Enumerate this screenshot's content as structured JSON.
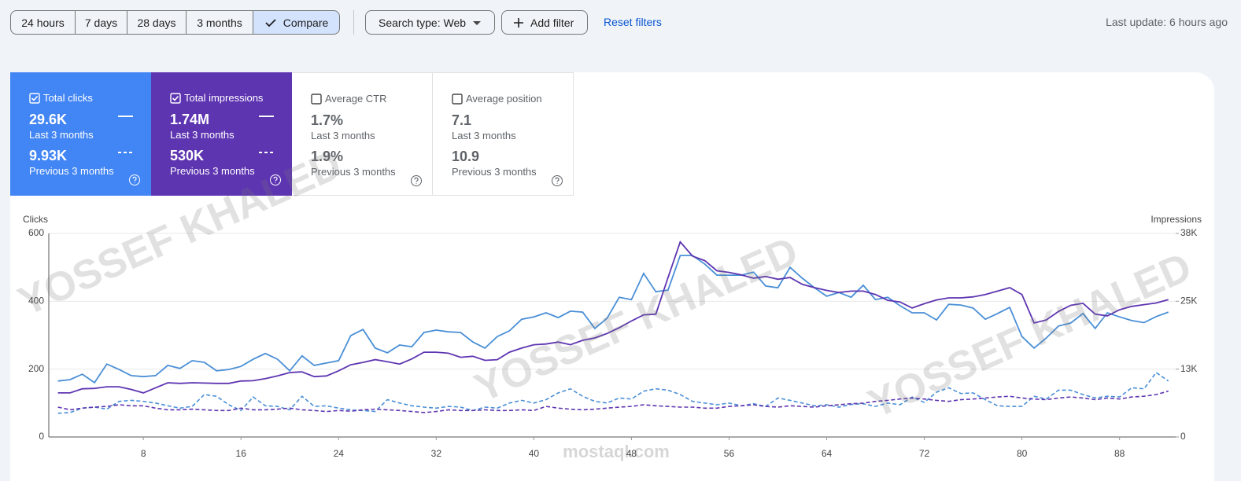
{
  "header": {
    "ranges": [
      "24 hours",
      "7 days",
      "28 days",
      "3 months"
    ],
    "compare": "Compare",
    "search_type": "Search type: Web",
    "add_filter": "Add filter",
    "reset": "Reset filters",
    "last_update": "Last update: 6 hours ago"
  },
  "metrics": [
    {
      "title": "Total clicks",
      "checked": true,
      "current": "29.6K",
      "current_label": "Last 3 months",
      "previous": "9.93K",
      "previous_label": "Previous 3 months",
      "color": "#4285f4"
    },
    {
      "title": "Total impressions",
      "checked": true,
      "current": "1.74M",
      "current_label": "Last 3 months",
      "previous": "530K",
      "previous_label": "Previous 3 months",
      "color": "#5e35b1"
    },
    {
      "title": "Average CTR",
      "checked": false,
      "current": "1.7%",
      "current_label": "Last 3 months",
      "previous": "1.9%",
      "previous_label": "Previous 3 months",
      "color": "#ffffff"
    },
    {
      "title": "Average position",
      "checked": false,
      "current": "7.1",
      "current_label": "Last 3 months",
      "previous": "10.9",
      "previous_label": "Previous 3 months",
      "color": "#ffffff"
    }
  ],
  "watermark": {
    "text": "YOSSEF KHALED",
    "site": "mostaql.com"
  },
  "chart_data": {
    "type": "line",
    "ylabel": "Clicks",
    "y2label": "Impressions",
    "x": [
      1,
      2,
      3,
      4,
      5,
      6,
      7,
      8,
      9,
      10,
      11,
      12,
      13,
      14,
      15,
      16,
      17,
      18,
      19,
      20,
      21,
      22,
      23,
      24,
      25,
      26,
      27,
      28,
      29,
      30,
      31,
      32,
      33,
      34,
      35,
      36,
      37,
      38,
      39,
      40,
      41,
      42,
      43,
      44,
      45,
      46,
      47,
      48,
      49,
      50,
      51,
      52,
      53,
      54,
      55,
      56,
      57,
      58,
      59,
      60,
      61,
      62,
      63,
      64,
      65,
      66,
      67,
      68,
      69,
      70,
      71,
      72,
      73,
      74,
      75,
      76,
      77,
      78,
      79,
      80,
      81,
      82,
      83,
      84,
      85,
      86,
      87,
      88,
      89,
      90,
      91,
      92
    ],
    "xlim": [
      0.25,
      92.6
    ],
    "xticks": [
      8,
      16,
      24,
      32,
      40,
      48,
      56,
      64,
      72,
      80,
      88
    ],
    "ylim": [
      0,
      600
    ],
    "yticks": [
      0,
      200,
      400,
      600
    ],
    "y2lim": [
      0,
      38000
    ],
    "y2ticks": [
      0,
      {
        "value": 12667,
        "label": "13K"
      },
      {
        "value": 25333,
        "label": "25K"
      },
      {
        "value": 38000,
        "label": "38K"
      }
    ],
    "grid": true,
    "series": [
      {
        "color": "#4a8fd6",
        "dashed": false,
        "axis": "y",
        "values": [
          165,
          169,
          185,
          160,
          215,
          199,
          181,
          178,
          181,
          211,
          202,
          225,
          220,
          195,
          199,
          208,
          229,
          246,
          229,
          195,
          239,
          211,
          218,
          225,
          299,
          317,
          262,
          248,
          271,
          266,
          308,
          315,
          310,
          308,
          280,
          262,
          296,
          313,
          347,
          354,
          366,
          352,
          371,
          368,
          320,
          350,
          412,
          405,
          482,
          428,
          433,
          535,
          535,
          510,
          477,
          477,
          477,
          486,
          445,
          440,
          500,
          468,
          440,
          415,
          426,
          412,
          447,
          405,
          412,
          387,
          366,
          366,
          345,
          391,
          389,
          380,
          347,
          364,
          382,
          296,
          262,
          292,
          327,
          336,
          364,
          320,
          366,
          354,
          343,
          337,
          355,
          368
        ]
      },
      {
        "color": "#5e35b1",
        "dashed": false,
        "axis": "y2",
        "values": [
          8230,
          8230,
          8990,
          9060,
          9370,
          9370,
          8870,
          8230,
          9180,
          10130,
          10010,
          10130,
          10070,
          10010,
          10010,
          10450,
          10510,
          10890,
          11400,
          12030,
          12160,
          11270,
          11400,
          12350,
          13490,
          13930,
          14440,
          14060,
          13620,
          14570,
          15830,
          15830,
          15640,
          14880,
          15070,
          14310,
          14440,
          15830,
          16590,
          17230,
          17350,
          17730,
          17230,
          18050,
          18490,
          19320,
          20390,
          21660,
          22800,
          22930,
          29770,
          36420,
          33760,
          32930,
          31030,
          30720,
          30270,
          29640,
          29960,
          29450,
          29770,
          28500,
          27870,
          27360,
          26980,
          27230,
          27230,
          26600,
          25520,
          25210,
          24070,
          24890,
          25590,
          25970,
          25970,
          26160,
          26600,
          27230,
          27870,
          26600,
          21280,
          21850,
          23430,
          24570,
          24950,
          22930,
          22610,
          23750,
          24380,
          24700,
          25020,
          25650
        ]
      },
      {
        "color": "#4a8fd6",
        "dashed": true,
        "axis": "y",
        "values": [
          70,
          72,
          85,
          88,
          82,
          105,
          108,
          105,
          100,
          92,
          85,
          90,
          125,
          120,
          95,
          78,
          118,
          92,
          90,
          80,
          120,
          90,
          92,
          85,
          80,
          78,
          75,
          110,
          100,
          92,
          88,
          85,
          90,
          88,
          78,
          88,
          85,
          100,
          108,
          100,
          110,
          130,
          142,
          120,
          105,
          100,
          115,
          112,
          135,
          142,
          138,
          125,
          105,
          100,
          95,
          100,
          92,
          98,
          90,
          115,
          108,
          100,
          92,
          95,
          88,
          96,
          98,
          90,
          100,
          95,
          118,
          102,
          132,
          145,
          128,
          130,
          110,
          92,
          90,
          90,
          120,
          112,
          138,
          138,
          125,
          115,
          120,
          118,
          145,
          142,
          190,
          165
        ]
      },
      {
        "color": "#5e35b1",
        "dashed": true,
        "axis": "y2",
        "values": [
          5570,
          5070,
          5380,
          5570,
          5700,
          6020,
          5830,
          5830,
          5380,
          5070,
          5070,
          5190,
          5070,
          4940,
          4940,
          5380,
          5070,
          5070,
          5190,
          5380,
          5070,
          4940,
          4750,
          4940,
          4810,
          5070,
          5190,
          5070,
          4940,
          4750,
          4560,
          4750,
          5070,
          4940,
          4940,
          5070,
          4940,
          4940,
          5070,
          4940,
          5700,
          5380,
          5190,
          5070,
          5190,
          5380,
          5570,
          5700,
          6020,
          5830,
          5700,
          5570,
          5570,
          5380,
          5380,
          5700,
          5830,
          6020,
          5700,
          5570,
          5830,
          5700,
          5570,
          5830,
          6020,
          6210,
          6330,
          6650,
          6840,
          7090,
          7280,
          7090,
          6840,
          6650,
          6970,
          7090,
          7280,
          7470,
          7600,
          7280,
          7090,
          6970,
          7280,
          7470,
          7280,
          6970,
          7280,
          7090,
          7470,
          7600,
          7920,
          8550
        ]
      }
    ]
  }
}
